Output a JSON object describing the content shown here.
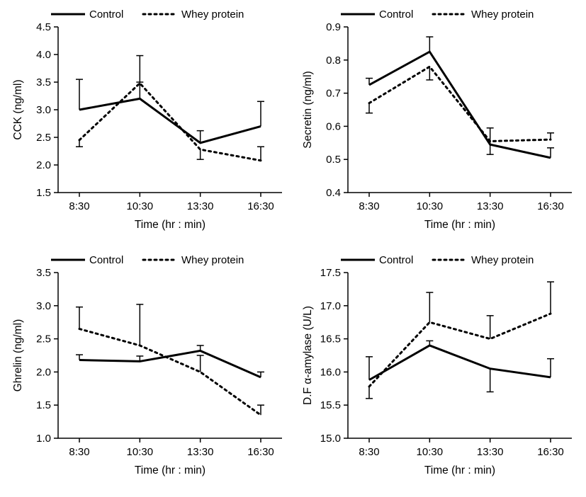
{
  "global": {
    "x_categories": [
      "8:30",
      "10:30",
      "13:30",
      "16:30"
    ],
    "x_axis_label": "Time (hr : min)",
    "legend_control_label": "Control",
    "legend_whey_label": "Whey protein",
    "colors": {
      "line": "#000000",
      "background": "#ffffff"
    },
    "line_width_series": 3,
    "line_width_axis": 1.5,
    "font_family": "Arial",
    "tick_fontsize": 15,
    "label_fontsize": 15.5,
    "legend_fontsize": 15,
    "dash_pattern": "3 5"
  },
  "panels": {
    "cck": {
      "type": "line",
      "y_label": "CCK (ng/ml)",
      "ylim": [
        1.5,
        4.5
      ],
      "ytick_step": 0.5,
      "yticks": [
        1.5,
        2.0,
        2.5,
        3.0,
        3.5,
        4.0,
        4.5
      ],
      "control": {
        "values": [
          3.0,
          3.2,
          2.4,
          2.7
        ],
        "err": [
          0.55,
          0.3,
          0.22,
          0.45
        ],
        "err_dir": "up"
      },
      "whey": {
        "values": [
          2.45,
          3.48,
          2.28,
          2.08
        ],
        "err": [
          0.12,
          0.5,
          0.18,
          0.25
        ],
        "err_dir": "mixed",
        "err_dirs": [
          "down",
          "up",
          "down",
          "up"
        ]
      }
    },
    "secretin": {
      "type": "line",
      "y_label": "Secretin (ng/ml)",
      "ylim": [
        0.4,
        0.9
      ],
      "ytick_step": 0.1,
      "yticks": [
        0.4,
        0.5,
        0.6,
        0.7,
        0.8,
        0.9
      ],
      "control": {
        "values": [
          0.725,
          0.825,
          0.545,
          0.505
        ],
        "err": [
          0.02,
          0.045,
          0.05,
          0.03
        ],
        "err_dir": "up"
      },
      "whey": {
        "values": [
          0.67,
          0.78,
          0.555,
          0.56
        ],
        "err": [
          0.03,
          0.04,
          0.04,
          0.02
        ],
        "err_dir": "mixed",
        "err_dirs": [
          "down",
          "down",
          "down",
          "up"
        ]
      }
    },
    "ghrelin": {
      "type": "line",
      "y_label": "Ghrelin (ng/ml)",
      "ylim": [
        1.0,
        3.5
      ],
      "ytick_step": 0.5,
      "yticks": [
        1.0,
        1.5,
        2.0,
        2.5,
        3.0,
        3.5
      ],
      "control": {
        "values": [
          2.18,
          2.16,
          2.32,
          1.92
        ],
        "err": [
          0.08,
          0.08,
          0.08,
          0.08
        ],
        "err_dir": "up"
      },
      "whey": {
        "values": [
          2.65,
          2.4,
          2.0,
          1.35
        ],
        "err": [
          0.33,
          0.62,
          0.25,
          0.15
        ],
        "err_dir": "up"
      }
    },
    "amylase": {
      "type": "line",
      "y_label": "D.F α-amylase (U/L)",
      "ylim": [
        15.0,
        17.5
      ],
      "ytick_step": 0.5,
      "yticks": [
        15.0,
        15.5,
        16.0,
        16.5,
        17.0,
        17.5
      ],
      "control": {
        "values": [
          15.88,
          16.4,
          16.05,
          15.92
        ],
        "err": [
          0.35,
          0.07,
          0.35,
          0.28
        ],
        "err_dir": "mixed",
        "err_dirs": [
          "up",
          "up",
          "down",
          "up"
        ]
      },
      "whey": {
        "values": [
          15.78,
          16.75,
          16.5,
          16.88
        ],
        "err": [
          0.18,
          0.45,
          0.35,
          0.48
        ],
        "err_dir": "mixed",
        "err_dirs": [
          "down",
          "up",
          "up",
          "up"
        ]
      }
    }
  }
}
